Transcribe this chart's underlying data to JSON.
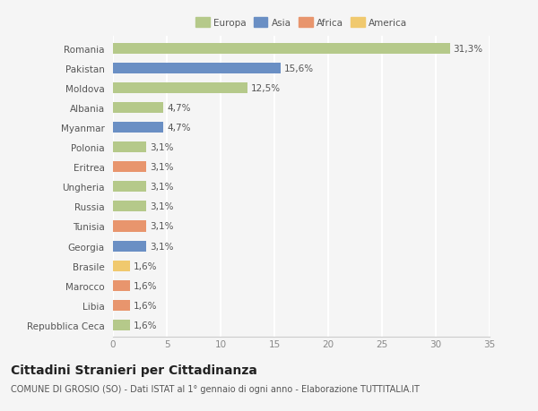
{
  "countries": [
    "Romania",
    "Pakistan",
    "Moldova",
    "Albania",
    "Myanmar",
    "Polonia",
    "Eritrea",
    "Ungheria",
    "Russia",
    "Tunisia",
    "Georgia",
    "Brasile",
    "Marocco",
    "Libia",
    "Repubblica Ceca"
  ],
  "values": [
    31.3,
    15.6,
    12.5,
    4.7,
    4.7,
    3.1,
    3.1,
    3.1,
    3.1,
    3.1,
    3.1,
    1.6,
    1.6,
    1.6,
    1.6
  ],
  "labels": [
    "31,3%",
    "15,6%",
    "12,5%",
    "4,7%",
    "4,7%",
    "3,1%",
    "3,1%",
    "3,1%",
    "3,1%",
    "3,1%",
    "3,1%",
    "1,6%",
    "1,6%",
    "1,6%",
    "1,6%"
  ],
  "colors": [
    "#b5c98a",
    "#6a8fc4",
    "#b5c98a",
    "#b5c98a",
    "#6a8fc4",
    "#b5c98a",
    "#e8956d",
    "#b5c98a",
    "#b5c98a",
    "#e8956d",
    "#6a8fc4",
    "#f0c96e",
    "#e8956d",
    "#e8956d",
    "#b5c98a"
  ],
  "legend_labels": [
    "Europa",
    "Asia",
    "Africa",
    "America"
  ],
  "legend_colors": [
    "#b5c98a",
    "#6a8fc4",
    "#e8956d",
    "#f0c96e"
  ],
  "xlim": [
    0,
    35
  ],
  "xticks": [
    0,
    5,
    10,
    15,
    20,
    25,
    30,
    35
  ],
  "title": "Cittadini Stranieri per Cittadinanza",
  "subtitle": "COMUNE DI GROSIO (SO) - Dati ISTAT al 1° gennaio di ogni anno - Elaborazione TUTTITALIA.IT",
  "background_color": "#f5f5f5",
  "grid_color": "#ffffff",
  "bar_height": 0.55,
  "label_fontsize": 7.5,
  "tick_fontsize": 7.5,
  "title_fontsize": 10,
  "subtitle_fontsize": 7
}
